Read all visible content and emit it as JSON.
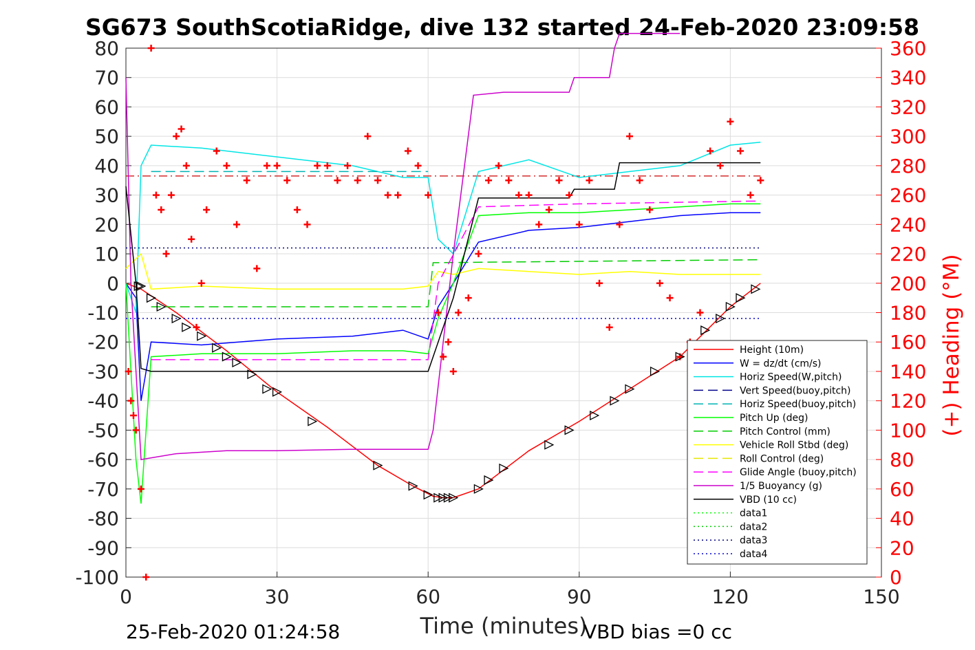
{
  "chart_data": {
    "type": "line",
    "title": "SG673 SouthScotiaRidge, dive 132 started 24-Feb-2020 23:09:58",
    "xlabel": "Time (minutes)",
    "ylabel": "",
    "y2label": "(+) Heading (°M)",
    "footer_left": "25-Feb-2020 01:24:58",
    "footer_right": "VBD bias =0 cc",
    "xlim": [
      0,
      150
    ],
    "ylim": [
      -100,
      80
    ],
    "y2lim": [
      0,
      360
    ],
    "xticks": [
      0,
      30,
      60,
      90,
      120,
      150
    ],
    "yticks": [
      -100,
      -90,
      -80,
      -70,
      -60,
      -50,
      -40,
      -30,
      -20,
      -10,
      0,
      10,
      20,
      30,
      40,
      50,
      60,
      70,
      80
    ],
    "y2ticks": [
      0,
      20,
      40,
      60,
      80,
      100,
      120,
      140,
      160,
      180,
      200,
      220,
      240,
      260,
      280,
      300,
      320,
      340,
      360
    ],
    "xtick_labels": [
      "0",
      "30",
      "60",
      "90",
      "120",
      "150"
    ],
    "ytick_labels": [
      "-100",
      "-90",
      "-80",
      "-70",
      "-60",
      "-50",
      "-40",
      "-30",
      "-20",
      "-10",
      "0",
      "10",
      "20",
      "30",
      "40",
      "50",
      "60",
      "70",
      "80"
    ],
    "y2tick_labels": [
      "0",
      "20",
      "40",
      "60",
      "80",
      "100",
      "120",
      "140",
      "160",
      "180",
      "200",
      "220",
      "240",
      "260",
      "280",
      "300",
      "320",
      "340",
      "360"
    ],
    "grid": true,
    "legend_position": "bottom-right",
    "series": [
      {
        "name": "Height (10m)",
        "color": "#ff0000",
        "style": "solid",
        "x": [
          0,
          3,
          10,
          20,
          30,
          40,
          50,
          57,
          61,
          63,
          65,
          70,
          80,
          90,
          100,
          110,
          120,
          126
        ],
        "y": [
          0,
          -2,
          -10,
          -23,
          -37,
          -49,
          -62,
          -69,
          -72.5,
          -73,
          -73,
          -70,
          -57,
          -47,
          -36,
          -25,
          -8,
          0
        ]
      },
      {
        "name": "W = dz/dt (cm/s)",
        "color": "#0000ff",
        "style": "solid",
        "x": [
          0,
          2,
          3,
          5,
          15,
          30,
          45,
          55,
          60,
          62,
          65,
          70,
          80,
          90,
          100,
          110,
          120,
          126
        ],
        "y": [
          0,
          -5,
          -40,
          -20,
          -21,
          -19,
          -18,
          -16,
          -19,
          -8,
          0,
          14,
          18,
          19,
          21,
          23,
          24,
          24
        ]
      },
      {
        "name": "Horiz Speed(W,pitch)",
        "color": "#00e5e5",
        "style": "solid",
        "x": [
          0,
          2,
          3,
          5,
          15,
          30,
          45,
          55,
          60,
          62,
          65,
          70,
          80,
          90,
          100,
          110,
          120,
          126
        ],
        "y": [
          0,
          -10,
          40,
          47,
          46,
          43,
          40,
          36,
          36,
          15,
          10,
          38,
          42,
          36,
          38,
          40,
          47,
          48
        ]
      },
      {
        "name": "Vert Speed(buoy,pitch)",
        "color": "#00008b",
        "style": "dash",
        "x": [],
        "y": []
      },
      {
        "name": "Horiz Speed(buoy,pitch)",
        "color": "#00b3b3",
        "style": "dash",
        "x": [
          5,
          60
        ],
        "y": [
          38,
          38
        ]
      },
      {
        "name": "Pitch Up (deg)",
        "color": "#00ff00",
        "style": "solid",
        "x": [
          0,
          2,
          3,
          5,
          15,
          30,
          45,
          55,
          60,
          62,
          65,
          70,
          80,
          90,
          100,
          110,
          120,
          126
        ],
        "y": [
          0,
          -60,
          -75,
          -25,
          -24,
          -24,
          -23,
          -23,
          -24,
          -12,
          0,
          23,
          24,
          24,
          25,
          26,
          27,
          27
        ]
      },
      {
        "name": "Pitch Control (mm)",
        "color": "#00cc00",
        "style": "dash",
        "x": [
          5,
          60,
          61,
          126
        ],
        "y": [
          -8,
          -8,
          7,
          8
        ]
      },
      {
        "name": "Vehicle Roll Stbd (deg)",
        "color": "#ffff00",
        "style": "solid",
        "x": [
          0,
          3,
          5,
          15,
          30,
          45,
          55,
          60,
          62,
          65,
          70,
          80,
          90,
          100,
          110,
          120,
          126
        ],
        "y": [
          5,
          10,
          -2,
          -1,
          -2,
          -2,
          -2,
          -1,
          4,
          3,
          5,
          4,
          3,
          4,
          3,
          3,
          3
        ]
      },
      {
        "name": "Roll Control (deg)",
        "color": "#e6e600",
        "style": "dash",
        "x": [],
        "y": []
      },
      {
        "name": "Glide Angle (buoy,pitch)",
        "color": "#ff00ff",
        "style": "dash",
        "x": [
          5,
          30,
          60,
          62,
          70,
          90,
          126
        ],
        "y": [
          -26,
          -26,
          -26,
          0,
          26,
          27,
          28
        ]
      },
      {
        "name": "1/5 Buoyancy (g)",
        "color": "#cc00cc",
        "style": "solid",
        "x": [
          0,
          1,
          3,
          10,
          20,
          30,
          45,
          55,
          60,
          61,
          65,
          69,
          75,
          82,
          88,
          89,
          96,
          97,
          98,
          110
        ],
        "y": [
          70,
          0,
          -60,
          -58,
          -57,
          -57,
          -56.5,
          -56.5,
          -56.5,
          -50,
          10,
          64,
          65,
          65,
          65,
          70,
          70,
          80,
          85,
          85
        ]
      },
      {
        "name": "VBD (10 cc)",
        "color": "#000000",
        "style": "solid",
        "x": [
          0,
          2,
          3,
          5,
          60,
          61,
          65,
          70,
          88,
          89,
          97,
          98,
          126
        ],
        "y": [
          33,
          0,
          -29,
          -30,
          -30,
          -25,
          -5,
          29,
          29,
          32,
          32,
          41,
          41
        ]
      },
      {
        "name": "data1",
        "color": "#00ff00",
        "style": "dot",
        "x": [],
        "y": []
      },
      {
        "name": "data2",
        "color": "#00cc00",
        "style": "dot",
        "x": [],
        "y": []
      },
      {
        "name": "data3",
        "color": "#000080",
        "style": "dot",
        "x": [
          0,
          126
        ],
        "y": [
          12,
          12
        ]
      },
      {
        "name": "data4",
        "color": "#0000cd",
        "style": "dot",
        "x": [
          0,
          126
        ],
        "y": [
          -12,
          -12
        ]
      }
    ],
    "reference_line": {
      "color": "#cc0000",
      "style": "dashdot",
      "y": 36.5
    },
    "heading": {
      "color": "#ff0000",
      "marker": "+",
      "x": [
        0.5,
        1,
        1.5,
        2,
        3,
        4,
        5,
        6,
        7,
        8,
        9,
        10,
        11,
        12,
        13,
        14,
        15,
        16,
        18,
        20,
        22,
        24,
        26,
        28,
        30,
        32,
        34,
        36,
        38,
        40,
        42,
        44,
        46,
        48,
        50,
        52,
        54,
        56,
        58,
        60,
        62,
        63,
        64,
        65,
        66,
        68,
        70,
        72,
        74,
        76,
        78,
        80,
        82,
        84,
        86,
        88,
        90,
        92,
        94,
        96,
        98,
        100,
        102,
        104,
        106,
        108,
        110,
        112,
        114,
        116,
        118,
        120,
        122,
        124,
        126
      ],
      "y": [
        140,
        120,
        110,
        100,
        60,
        0,
        360,
        260,
        250,
        220,
        260,
        300,
        305,
        280,
        230,
        170,
        200,
        250,
        290,
        280,
        240,
        270,
        210,
        280,
        280,
        270,
        250,
        240,
        280,
        280,
        270,
        280,
        270,
        300,
        270,
        260,
        260,
        290,
        280,
        260,
        180,
        150,
        160,
        140,
        180,
        190,
        220,
        270,
        280,
        270,
        260,
        260,
        240,
        250,
        270,
        260,
        240,
        270,
        200,
        170,
        240,
        300,
        270,
        250,
        200,
        190,
        150,
        160,
        180,
        290,
        280,
        310,
        290,
        260,
        270
      ]
    },
    "dive_markers": {
      "color": "#000000",
      "marker": "triangle",
      "x": [
        2.5,
        3,
        5,
        7,
        10,
        12,
        15,
        18,
        20,
        22,
        25,
        28,
        30,
        37,
        50,
        57,
        60,
        62,
        63,
        64,
        65,
        70,
        72,
        75,
        84,
        88,
        93,
        97,
        100,
        105,
        110,
        115,
        118,
        120,
        122,
        125
      ],
      "y": [
        -1,
        -1,
        -5,
        -8,
        -12,
        -15,
        -18,
        -22,
        -25,
        -27,
        -31,
        -36,
        -37,
        -47,
        -62,
        -69,
        -72,
        -73,
        -73,
        -73,
        -73,
        -70,
        -67,
        -63,
        -55,
        -50,
        -45,
        -40,
        -36,
        -30,
        -25,
        -16,
        -12,
        -8,
        -5,
        -2
      ]
    }
  }
}
